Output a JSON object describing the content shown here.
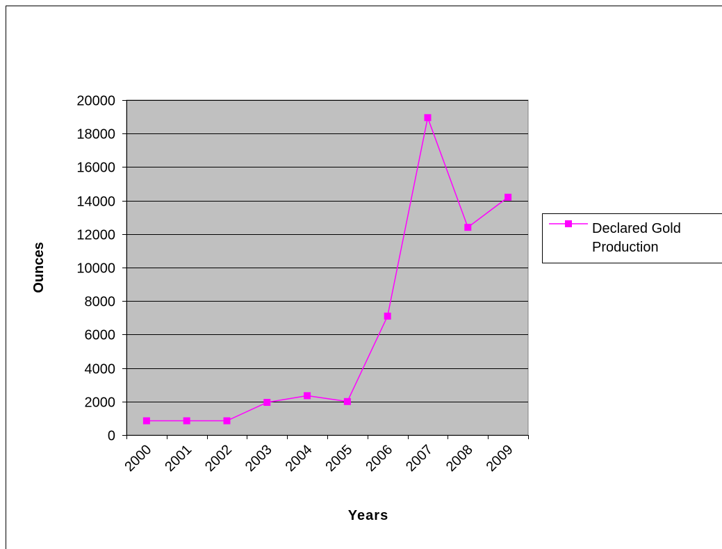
{
  "chart_data": {
    "type": "line",
    "xlabel": "Years",
    "ylabel": "Ounces",
    "categories": [
      "2000",
      "2001",
      "2002",
      "2003",
      "2004",
      "2005",
      "2006",
      "2007",
      "2008",
      "2009"
    ],
    "series": [
      {
        "name": "Declared Gold Production",
        "color": "#ff00ff",
        "values": [
          850,
          850,
          850,
          1950,
          2350,
          2000,
          7100,
          18950,
          12400,
          14200
        ]
      }
    ],
    "ylim": [
      0,
      20000
    ],
    "yticks": [
      0,
      2000,
      4000,
      6000,
      8000,
      10000,
      12000,
      14000,
      16000,
      18000,
      20000
    ],
    "grid": true,
    "legend": "right",
    "plot_background": "#c0c0c0"
  }
}
